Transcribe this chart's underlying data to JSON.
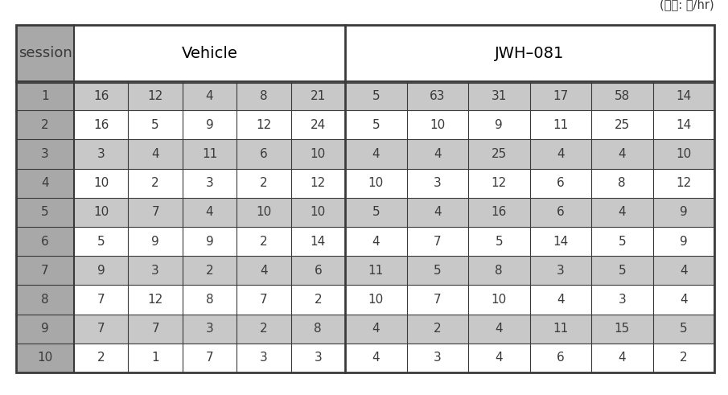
{
  "unit_label": "(단위: 회/hr)",
  "vehicle_cols": 5,
  "jwh_cols": 6,
  "sessions": [
    1,
    2,
    3,
    4,
    5,
    6,
    7,
    8,
    9,
    10
  ],
  "vehicle_data": [
    [
      16,
      12,
      4,
      8,
      21
    ],
    [
      16,
      5,
      9,
      12,
      24
    ],
    [
      3,
      4,
      11,
      6,
      10
    ],
    [
      10,
      2,
      3,
      2,
      12
    ],
    [
      10,
      7,
      4,
      10,
      10
    ],
    [
      5,
      9,
      9,
      2,
      14
    ],
    [
      9,
      3,
      2,
      4,
      6
    ],
    [
      7,
      12,
      8,
      7,
      2
    ],
    [
      7,
      7,
      3,
      2,
      8
    ],
    [
      2,
      1,
      7,
      3,
      3
    ]
  ],
  "jwh_data": [
    [
      5,
      63,
      31,
      17,
      58,
      14
    ],
    [
      5,
      10,
      9,
      11,
      25,
      14
    ],
    [
      4,
      4,
      25,
      4,
      4,
      10
    ],
    [
      10,
      3,
      12,
      6,
      8,
      12
    ],
    [
      5,
      4,
      16,
      6,
      4,
      9
    ],
    [
      4,
      7,
      5,
      14,
      5,
      9
    ],
    [
      11,
      5,
      8,
      3,
      5,
      4
    ],
    [
      10,
      7,
      10,
      4,
      3,
      4
    ],
    [
      4,
      2,
      4,
      11,
      15,
      5
    ],
    [
      4,
      3,
      4,
      6,
      4,
      2
    ]
  ],
  "session_col_color": "#a8a8a8",
  "odd_row_color": "#c8c8c8",
  "even_row_color": "#ffffff",
  "header_bg_color": "#ffffff",
  "border_color": "#3a3a3a",
  "text_color": "#3a3a3a",
  "font_size_data": 11,
  "font_size_header": 14,
  "font_size_unit": 10.5
}
